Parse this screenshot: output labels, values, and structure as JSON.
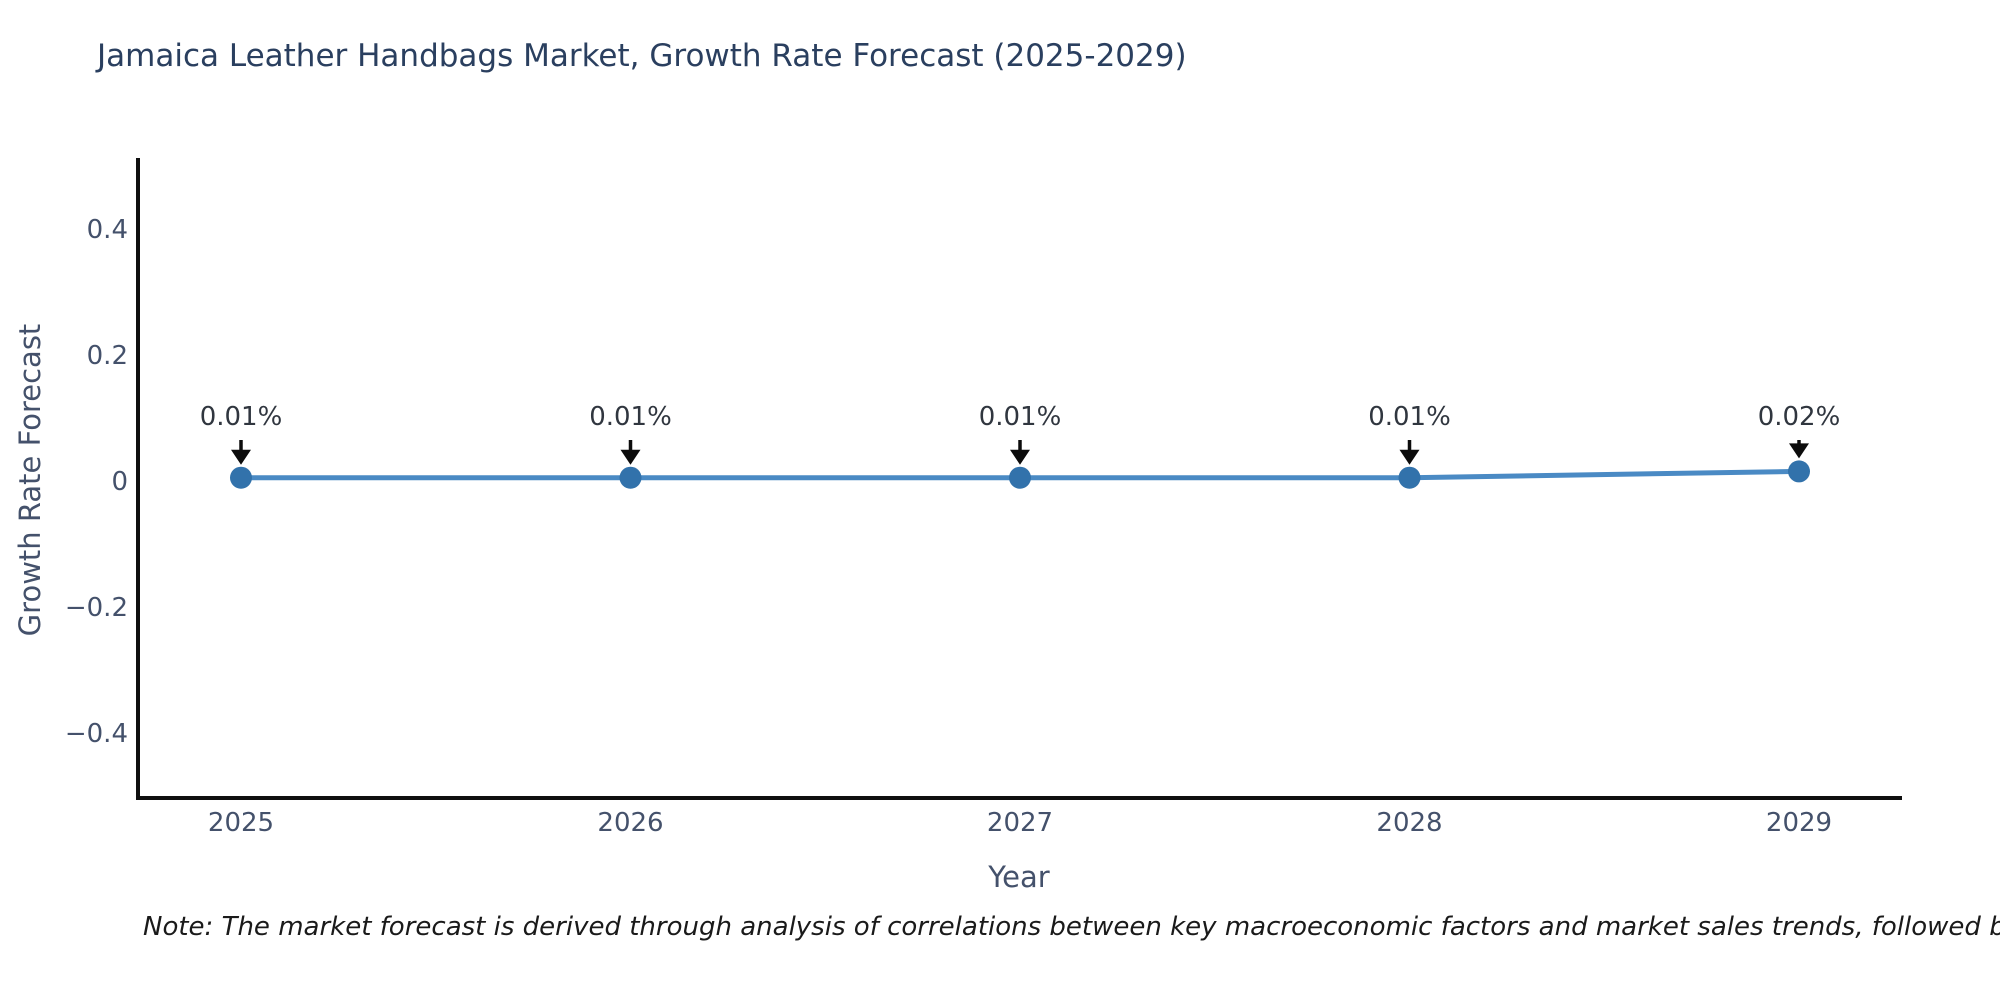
{
  "title": "Jamaica Leather Handbags Market, Growth Rate Forecast (2025-2029)",
  "axes": {
    "x_label": "Year",
    "y_label": "Growth Rate Forecast",
    "x_tick_labels": [
      "2025",
      "2026",
      "2027",
      "2028",
      "2029"
    ],
    "y_tick_labels": [
      "0.4",
      "0.2",
      "0",
      "−0.2",
      "−0.4"
    ],
    "y_tick_values": [
      0.4,
      0.2,
      0,
      -0.2,
      -0.4
    ]
  },
  "note": "Note: The market forecast is derived through analysis of correlations between key macroeconomic factors and market sales trends, followed by predictive modeling to project future sales",
  "chart_data": {
    "type": "line",
    "title": "Jamaica Leather Handbags Market, Growth Rate Forecast (2025-2029)",
    "xlabel": "Year",
    "ylabel": "Growth Rate Forecast",
    "x": [
      2025,
      2026,
      2027,
      2028,
      2029
    ],
    "series": [
      {
        "name": "Growth Rate Forecast",
        "values": [
          0.01,
          0.01,
          0.01,
          0.01,
          0.02
        ]
      }
    ],
    "point_labels": [
      "0.01%",
      "0.01%",
      "0.01%",
      "0.01%",
      "0.02%"
    ],
    "ylim": [
      -0.5,
      0.52
    ],
    "grid": false,
    "legend_position": "none",
    "annotation_style": "downward-arrow",
    "colors": {
      "line": "#4a8ac4",
      "marker": "#3272ab",
      "arrow": "#0c0c0c",
      "axis": "#0f0f0f",
      "title_text": "#2a3f5f",
      "tick_text": "#44516b",
      "annotation_text": "#30363f",
      "note_text": "#1a1a1a",
      "background": "#ffffff"
    }
  }
}
